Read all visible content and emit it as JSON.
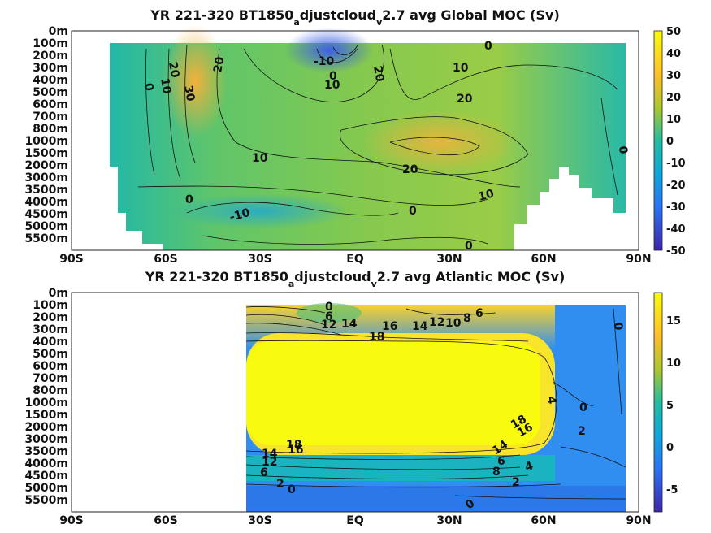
{
  "chart_data": [
    {
      "type": "heatmap",
      "title_parts": {
        "pre": "YR 221-320 BT1850",
        "sub1": "a",
        "mid": "djustcloud",
        "sub2": "v",
        "post": "2.7 avg  Global MOC (Sv)"
      },
      "x_ticks": [
        "90S",
        "60S",
        "30S",
        "EQ",
        "30N",
        "60N",
        "90N"
      ],
      "y_ticks": [
        "0m",
        "100m",
        "200m",
        "300m",
        "400m",
        "500m",
        "600m",
        "700m",
        "800m",
        "1000m",
        "1500m",
        "2000m",
        "3000m",
        "3500m",
        "4000m",
        "4500m",
        "5000m",
        "5500m"
      ],
      "colorbar": {
        "ticks": [
          "50",
          "40",
          "30",
          "20",
          "10",
          "0",
          "-10",
          "-20",
          "-30",
          "-40",
          "-50"
        ],
        "range": [
          -50,
          50
        ]
      },
      "contour_labels": [
        "10",
        "20",
        "30",
        "0",
        "20",
        "-10",
        "0",
        "10",
        "20",
        "0",
        "10",
        "20",
        "0",
        "10",
        "20",
        "10",
        "0",
        "-10",
        "0",
        "0"
      ],
      "fields": [
        {
          "lat": -50,
          "depth_index": 3,
          "value": 42
        },
        {
          "lat": -50,
          "depth_index": 8,
          "value": 30
        },
        {
          "lat": 32,
          "depth_index": 9,
          "value": 28
        },
        {
          "lat": -5,
          "depth_index": 1,
          "value": -40
        },
        {
          "lat": -30,
          "depth_index": 14,
          "value": -15
        },
        {
          "lat": 5,
          "depth_index": 5,
          "value": 12
        }
      ]
    },
    {
      "type": "heatmap",
      "title_parts": {
        "pre": "YR 221-320 BT1850",
        "sub1": "a",
        "mid": "djustcloud",
        "sub2": "v",
        "post": "2.7 avg  Atlantic MOC (Sv)"
      },
      "x_ticks": [
        "90S",
        "60S",
        "30S",
        "EQ",
        "30N",
        "60N",
        "90N"
      ],
      "y_ticks": [
        "0m",
        "100m",
        "200m",
        "300m",
        "400m",
        "500m",
        "600m",
        "700m",
        "800m",
        "1000m",
        "1500m",
        "2000m",
        "3000m",
        "3500m",
        "4000m",
        "4500m",
        "5000m",
        "5500m"
      ],
      "colorbar": {
        "ticks": [
          "15",
          "10",
          "5",
          "0",
          "-5"
        ],
        "range": [
          -8,
          18
        ]
      },
      "contour_labels": [
        "0",
        "6",
        "12",
        "14",
        "18",
        "16",
        "14",
        "12",
        "10",
        "8",
        "6",
        "0",
        "4",
        "0",
        "2",
        "18",
        "16",
        "14",
        "12",
        "6",
        "18",
        "16",
        "14",
        "8",
        "6",
        "4",
        "2",
        "2",
        "0",
        "0"
      ],
      "fields": [
        {
          "lat": 0,
          "depth_index": 9,
          "value": 18
        },
        {
          "lat": -25,
          "depth_index": 4,
          "value": 10
        },
        {
          "lat": 0,
          "depth_index": 16,
          "value": 0
        },
        {
          "lat": 75,
          "depth_index": 10,
          "value": 0
        }
      ]
    }
  ]
}
